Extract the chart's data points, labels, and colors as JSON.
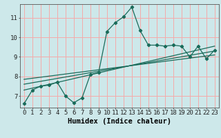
{
  "xlabel": "Humidex (Indice chaleur)",
  "bg_color": "#cde8ea",
  "grid_color": "#f5aaaa",
  "line_color": "#1a6b5a",
  "xlim": [
    -0.5,
    23.5
  ],
  "ylim": [
    6.4,
    11.7
  ],
  "xticks": [
    0,
    1,
    2,
    3,
    4,
    5,
    6,
    7,
    8,
    9,
    10,
    11,
    12,
    13,
    14,
    15,
    16,
    17,
    18,
    19,
    20,
    21,
    22,
    23
  ],
  "yticks": [
    7,
    8,
    9,
    10,
    11
  ],
  "main_x": [
    0,
    1,
    2,
    3,
    4,
    5,
    6,
    7,
    8,
    9,
    10,
    11,
    12,
    13,
    14,
    15,
    16,
    17,
    18,
    19,
    20,
    21,
    22,
    23
  ],
  "main_y": [
    6.6,
    7.3,
    7.5,
    7.55,
    7.7,
    7.0,
    6.65,
    6.9,
    8.1,
    8.2,
    10.3,
    10.75,
    11.05,
    11.55,
    10.35,
    9.6,
    9.6,
    9.55,
    9.6,
    9.55,
    9.0,
    9.55,
    8.9,
    9.35
  ],
  "trend1_x": [
    0,
    23
  ],
  "trend1_y": [
    7.3,
    9.55
  ],
  "trend2_x": [
    0,
    23
  ],
  "trend2_y": [
    7.6,
    9.3
  ],
  "trend3_x": [
    0,
    23
  ],
  "trend3_y": [
    7.85,
    9.1
  ],
  "tick_fontsize": 6.5,
  "label_fontsize": 7.5
}
